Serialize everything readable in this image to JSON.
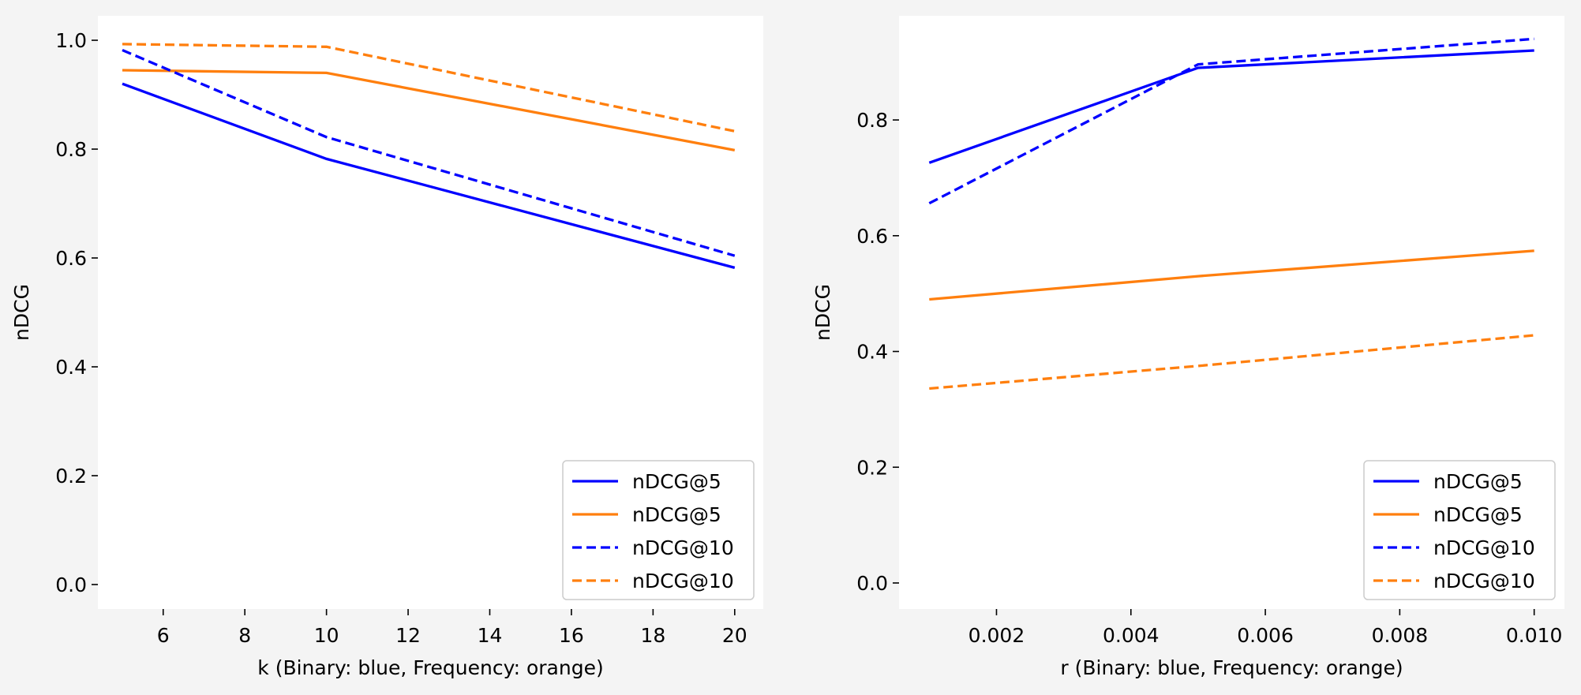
{
  "chart_data": [
    {
      "type": "line",
      "title": "",
      "xlabel": "k (Binary: blue, Frequency: orange)",
      "ylabel": "nDCG",
      "xlim": [
        4.4,
        20.7
      ],
      "ylim": [
        -0.045,
        1.045
      ],
      "xticks": [
        6,
        8,
        10,
        12,
        14,
        16,
        18,
        20
      ],
      "xtick_labels": [
        "6",
        "8",
        "10",
        "12",
        "14",
        "16",
        "18",
        "20"
      ],
      "yticks": [
        0.0,
        0.2,
        0.4,
        0.6,
        0.8,
        1.0
      ],
      "ytick_labels": [
        "0.0",
        "0.2",
        "0.4",
        "0.6",
        "0.8",
        "1.0"
      ],
      "x": [
        5,
        10,
        20
      ],
      "grid": false,
      "legend_position": "lower-right",
      "series": [
        {
          "name": "nDCG@5",
          "color": "#0000ff",
          "dash": "solid",
          "values": [
            0.92,
            0.782,
            0.582
          ]
        },
        {
          "name": "nDCG@5",
          "color": "#ff7f0e",
          "dash": "solid",
          "values": [
            0.945,
            0.94,
            0.798
          ]
        },
        {
          "name": "nDCG@10",
          "color": "#0000ff",
          "dash": "dashed",
          "values": [
            0.982,
            0.822,
            0.604
          ]
        },
        {
          "name": "nDCG@10",
          "color": "#ff7f0e",
          "dash": "dashed",
          "values": [
            0.993,
            0.988,
            0.833
          ]
        }
      ]
    },
    {
      "type": "line",
      "title": "",
      "xlabel": "r (Binary: blue, Frequency: orange)",
      "ylabel": "nDCG",
      "xlim": [
        0.00055,
        0.01045
      ],
      "ylim": [
        -0.045,
        0.98
      ],
      "xticks": [
        0.002,
        0.004,
        0.006,
        0.008,
        0.01
      ],
      "xtick_labels": [
        "0.002",
        "0.004",
        "0.006",
        "0.008",
        "0.010"
      ],
      "yticks": [
        0.0,
        0.2,
        0.4,
        0.6,
        0.8
      ],
      "ytick_labels": [
        "0.0",
        "0.2",
        "0.4",
        "0.6",
        "0.8"
      ],
      "x": [
        0.001,
        0.005,
        0.01
      ],
      "grid": false,
      "legend_position": "lower-right",
      "series": [
        {
          "name": "nDCG@5",
          "color": "#0000ff",
          "dash": "solid",
          "values": [
            0.726,
            0.89,
            0.92
          ]
        },
        {
          "name": "nDCG@5",
          "color": "#ff7f0e",
          "dash": "solid",
          "values": [
            0.49,
            0.53,
            0.574
          ]
        },
        {
          "name": "nDCG@10",
          "color": "#0000ff",
          "dash": "dashed",
          "values": [
            0.656,
            0.896,
            0.94
          ]
        },
        {
          "name": "nDCG@10",
          "color": "#ff7f0e",
          "dash": "dashed",
          "values": [
            0.336,
            0.375,
            0.428
          ]
        }
      ]
    }
  ]
}
